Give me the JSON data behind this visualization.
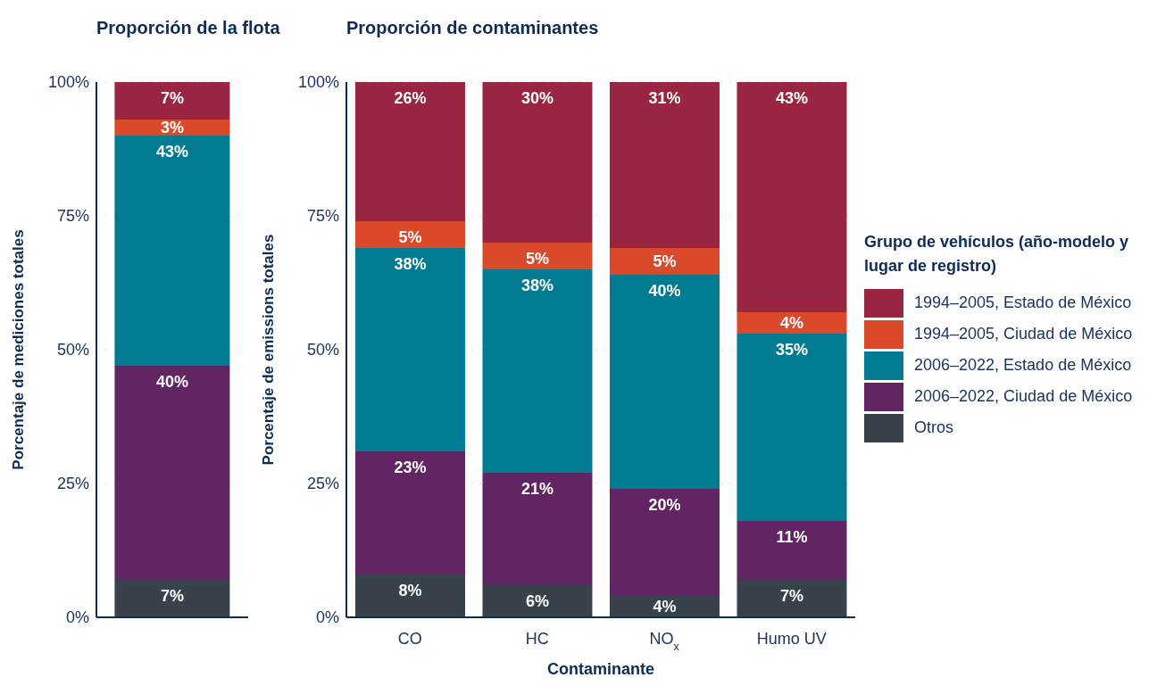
{
  "chart_data": [
    {
      "type": "bar",
      "title": "Proporción de la flota",
      "ylabel": "Porcentaje de mediciones totales",
      "categories": [
        null
      ],
      "stacked": true,
      "ylim": [
        0,
        100
      ],
      "yticks": [
        {
          "value": 0,
          "label": "0%"
        },
        {
          "value": 25,
          "label": "25%"
        },
        {
          "value": 50,
          "label": "50%"
        },
        {
          "value": 75,
          "label": "75%"
        },
        {
          "value": 100,
          "label": "100%"
        }
      ],
      "grid": "y",
      "legend": false,
      "series": [
        {
          "color": "#37424a",
          "values": [
            7
          ],
          "value_labels": [
            "7%"
          ]
        },
        {
          "color": "#612563",
          "values": [
            40
          ],
          "value_labels": [
            "40%"
          ]
        },
        {
          "color": "#007b92",
          "values": [
            43
          ],
          "value_labels": [
            "43%"
          ]
        },
        {
          "color": "#d9492a",
          "values": [
            3
          ],
          "value_labels": [
            "3%"
          ]
        },
        {
          "color": "#9a2540",
          "values": [
            7
          ],
          "value_labels": [
            "7%"
          ]
        }
      ]
    },
    {
      "type": "bar",
      "title": "Proporción de contaminantes",
      "ylabel": "Porcentaje de emissions totales",
      "xlabel": "Contaminante",
      "legend_title": "Grupo de vehículos (año-modelo y lugar de registro)",
      "categories": [
        "CO",
        "HC",
        "NO$_{x}$",
        "Humo UV"
      ],
      "stacked": true,
      "ylim": [
        0,
        100
      ],
      "yticks": [
        {
          "value": 0,
          "label": "0%"
        },
        {
          "value": 25,
          "label": "25%"
        },
        {
          "value": 50,
          "label": "50%"
        },
        {
          "value": 75,
          "label": "75%"
        },
        {
          "value": 100,
          "label": "100%"
        }
      ],
      "grid": "y",
      "legend": "right",
      "series": [
        {
          "name": "Otros",
          "color": "#37424a",
          "values": [
            8,
            6,
            4,
            7
          ],
          "value_labels": [
            "8%",
            "6%",
            "4%",
            "7%"
          ]
        },
        {
          "name": "2006–2022, Ciudad de México",
          "color": "#612563",
          "values": [
            23,
            21,
            20,
            11
          ],
          "value_labels": [
            "23%",
            "21%",
            "20%",
            "11%"
          ]
        },
        {
          "name": "2006–2022, Estado de México",
          "color": "#007b92",
          "values": [
            38,
            38,
            40,
            35
          ],
          "value_labels": [
            "38%",
            "38%",
            "40%",
            "35%"
          ]
        },
        {
          "name": "1994–2005, Ciudad de México",
          "color": "#d9492a",
          "values": [
            5,
            5,
            5,
            4
          ],
          "value_labels": [
            "5%",
            "5%",
            "5%",
            "4%"
          ]
        },
        {
          "name": "1994–2005, Estado de México",
          "color": "#9a2540",
          "values": [
            26,
            30,
            31,
            43
          ],
          "value_labels": [
            "26%",
            "30%",
            "31%",
            "43%"
          ]
        }
      ]
    }
  ]
}
